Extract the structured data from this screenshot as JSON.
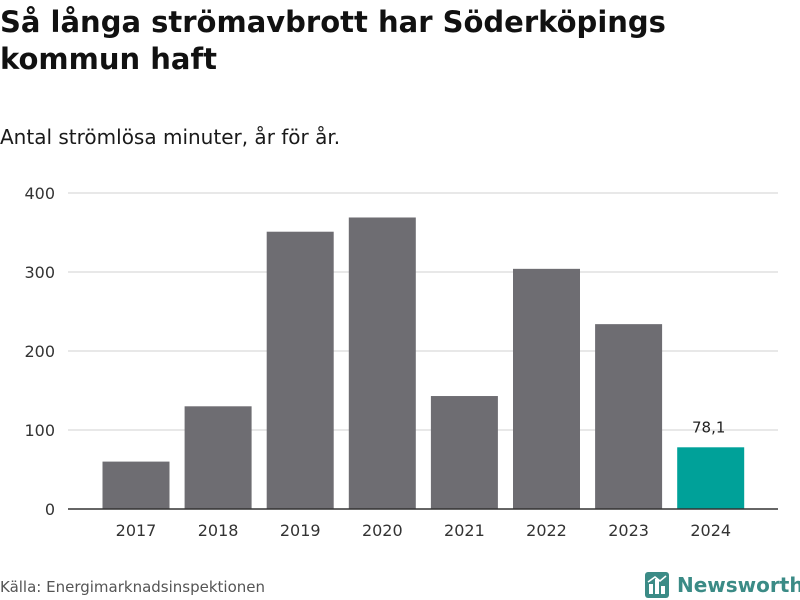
{
  "title": "Så långa strömavbrott har Söderköpings kommun haft",
  "subtitle": "Antal strömlösa minuter, år för år.",
  "source": "Källa: Energimarknadsinspektionen",
  "brand": {
    "name": "Newsworthy",
    "icon": "bar-chart-logo-icon",
    "color": "#3b8b86"
  },
  "colors": {
    "bar": "#6e6d72",
    "highlight": "#00a199",
    "grid": "#d9d9d9",
    "axis": "#333333"
  },
  "chart_data": {
    "type": "bar",
    "categories": [
      "2017",
      "2018",
      "2019",
      "2020",
      "2021",
      "2022",
      "2023",
      "2024"
    ],
    "values": [
      60,
      130,
      351,
      369,
      143,
      304,
      234,
      78.1
    ],
    "highlight_index": 7,
    "highlight_label": "78,1",
    "yticks": [
      0,
      100,
      200,
      300,
      400
    ],
    "ylim": [
      0,
      400
    ],
    "xlabel": "",
    "ylabel": "",
    "grid": true
  }
}
